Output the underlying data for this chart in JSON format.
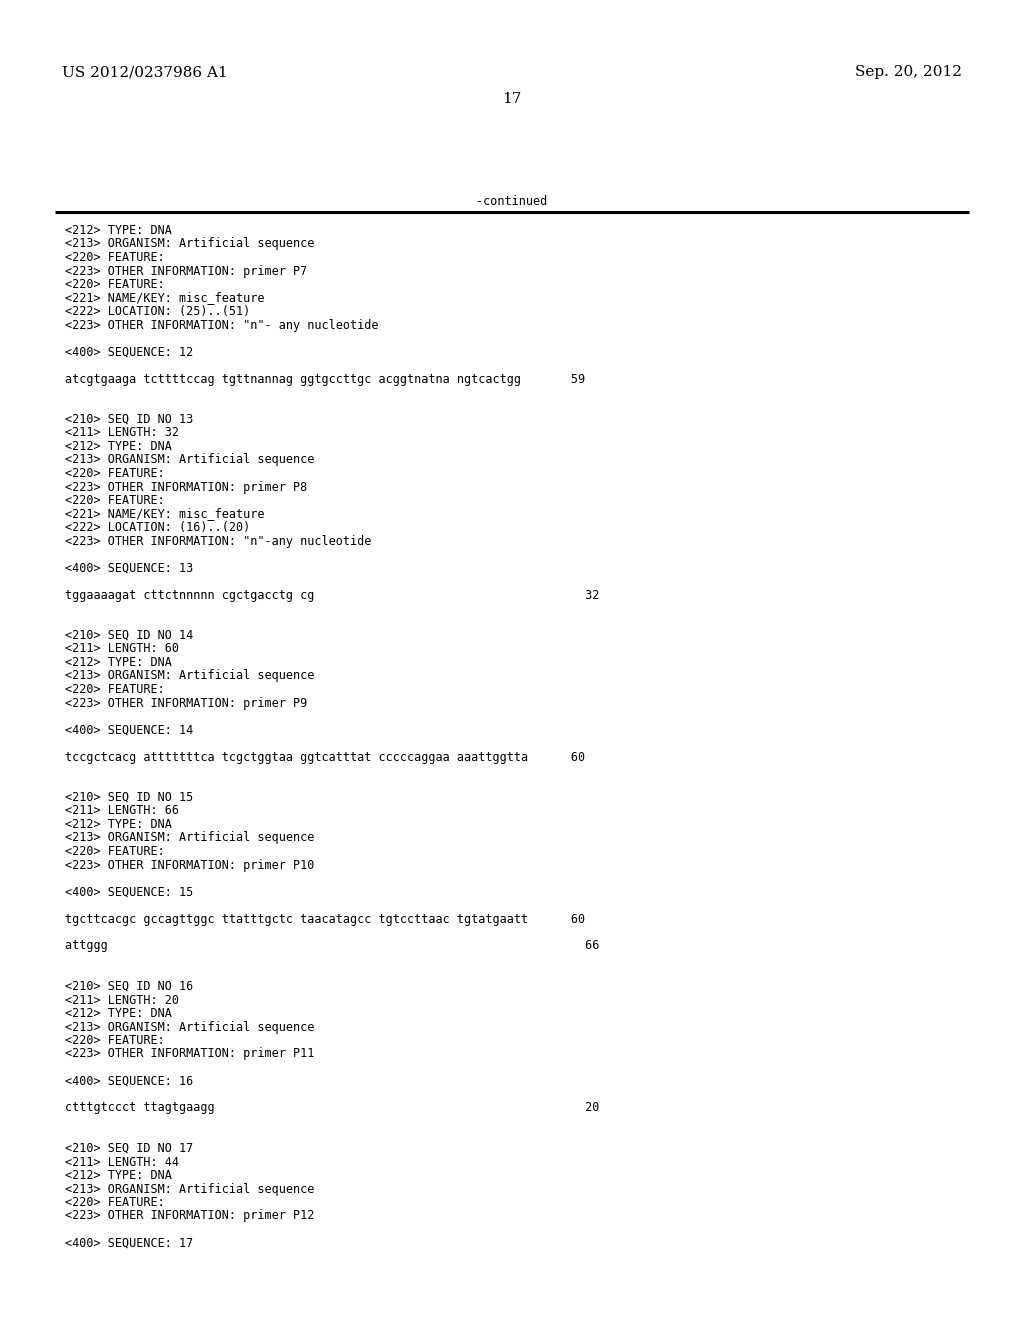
{
  "header_left": "US 2012/0237986 A1",
  "header_right": "Sep. 20, 2012",
  "page_number": "17",
  "continued_text": "-continued",
  "background_color": "#ffffff",
  "text_color": "#000000",
  "font_size_header": 11.0,
  "font_size_body": 8.5,
  "lines": [
    "<212> TYPE: DNA",
    "<213> ORGANISM: Artificial sequence",
    "<220> FEATURE:",
    "<223> OTHER INFORMATION: primer P7",
    "<220> FEATURE:",
    "<221> NAME/KEY: misc_feature",
    "<222> LOCATION: (25)..(51)",
    "<223> OTHER INFORMATION: \"n\"- any nucleotide",
    "",
    "<400> SEQUENCE: 12",
    "",
    "atcgtgaaga tcttttccag tgttnannag ggtgccttgc acggtnatna ngtcactgg       59",
    "",
    "",
    "<210> SEQ ID NO 13",
    "<211> LENGTH: 32",
    "<212> TYPE: DNA",
    "<213> ORGANISM: Artificial sequence",
    "<220> FEATURE:",
    "<223> OTHER INFORMATION: primer P8",
    "<220> FEATURE:",
    "<221> NAME/KEY: misc_feature",
    "<222> LOCATION: (16)..(20)",
    "<223> OTHER INFORMATION: \"n\"-any nucleotide",
    "",
    "<400> SEQUENCE: 13",
    "",
    "tggaaaagat cttctnnnnn cgctgacctg cg                                      32",
    "",
    "",
    "<210> SEQ ID NO 14",
    "<211> LENGTH: 60",
    "<212> TYPE: DNA",
    "<213> ORGANISM: Artificial sequence",
    "<220> FEATURE:",
    "<223> OTHER INFORMATION: primer P9",
    "",
    "<400> SEQUENCE: 14",
    "",
    "tccgctcacg atttttttca tcgctggtaa ggtcatttat cccccaggaa aaattggtta      60",
    "",
    "",
    "<210> SEQ ID NO 15",
    "<211> LENGTH: 66",
    "<212> TYPE: DNA",
    "<213> ORGANISM: Artificial sequence",
    "<220> FEATURE:",
    "<223> OTHER INFORMATION: primer P10",
    "",
    "<400> SEQUENCE: 15",
    "",
    "tgcttcacgc gccagttggc ttatttgctc taacatagcc tgtccttaac tgtatgaatt      60",
    "",
    "attggg                                                                   66",
    "",
    "",
    "<210> SEQ ID NO 16",
    "<211> LENGTH: 20",
    "<212> TYPE: DNA",
    "<213> ORGANISM: Artificial sequence",
    "<220> FEATURE:",
    "<223> OTHER INFORMATION: primer P11",
    "",
    "<400> SEQUENCE: 16",
    "",
    "ctttgtccct ttagtgaagg                                                    20",
    "",
    "",
    "<210> SEQ ID NO 17",
    "<211> LENGTH: 44",
    "<212> TYPE: DNA",
    "<213> ORGANISM: Artificial sequence",
    "<220> FEATURE:",
    "<223> OTHER INFORMATION: primer P12",
    "",
    "<400> SEQUENCE: 17"
  ]
}
